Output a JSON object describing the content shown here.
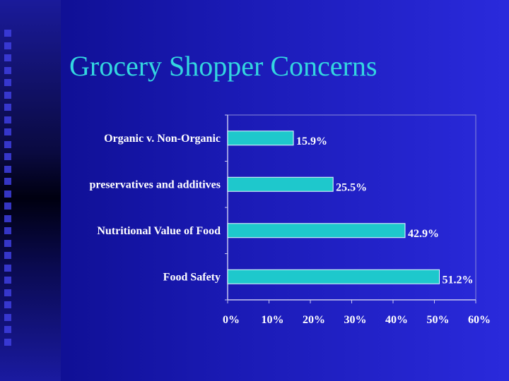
{
  "slide": {
    "title": "Grocery Shopper Concerns"
  },
  "colors": {
    "background": "#1a1ab4",
    "title": "#33d6e0",
    "bar": "#1ec8cc",
    "text": "#ffffff"
  },
  "chart_data": {
    "type": "bar",
    "orientation": "horizontal",
    "categories": [
      "Organic v. Non-Organic",
      "preservatives and additives",
      "Nutritional Value of Food",
      "Food Safety"
    ],
    "values": [
      15.9,
      25.5,
      42.9,
      51.2
    ],
    "value_labels": [
      "15.9%",
      "25.5%",
      "42.9%",
      "51.2%"
    ],
    "xlim": [
      0,
      60
    ],
    "xticks": [
      0,
      10,
      20,
      30,
      40,
      50,
      60
    ],
    "xtick_labels": [
      "0%",
      "10%",
      "20%",
      "30%",
      "40%",
      "50%",
      "60%"
    ],
    "grid": false,
    "legend": "none"
  }
}
